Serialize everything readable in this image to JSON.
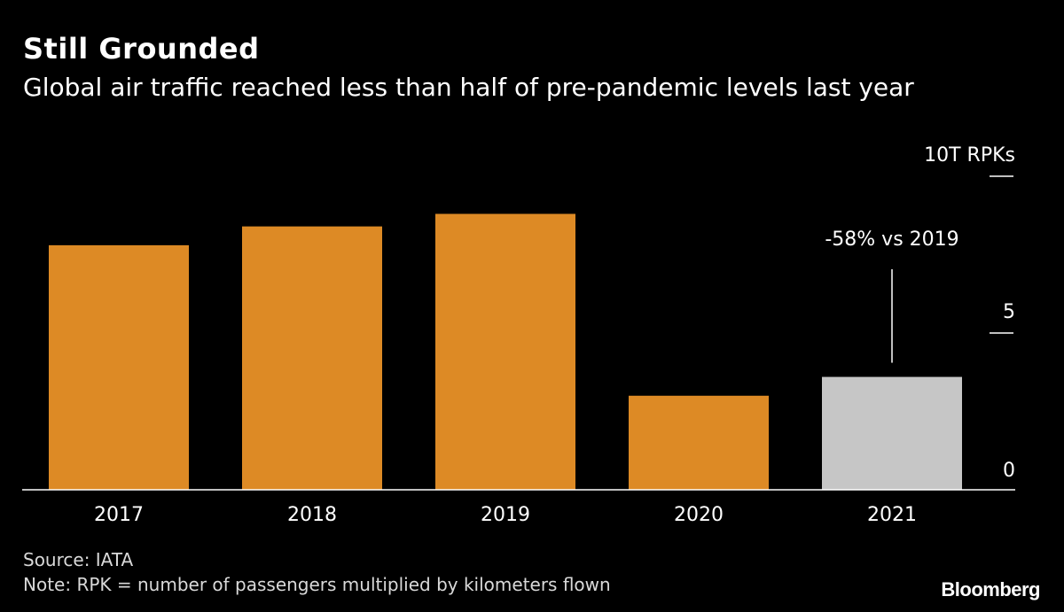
{
  "title": "Still Grounded",
  "subtitle": "Global air traffic reached less than half of pre-pandemic levels last year",
  "colors": {
    "bar": "#dd8a25",
    "highlight": "#c6c6c6",
    "background": "#000000",
    "axis": "#ffffff"
  },
  "chart_data": {
    "type": "bar",
    "unit_label": "10T RPKs",
    "categories": [
      "2017",
      "2018",
      "2019",
      "2020",
      "2021"
    ],
    "values": [
      7.8,
      8.4,
      8.8,
      3.0,
      3.6
    ],
    "highlight_category": "2021",
    "ylim": [
      0,
      10
    ],
    "yticks": [
      0,
      5,
      10
    ],
    "ytick_labels": [
      "0",
      "5",
      "10T RPKs"
    ],
    "annotation": {
      "category": "2021",
      "text": "-58% vs 2019"
    },
    "xlabel": "",
    "ylabel": ""
  },
  "footer": {
    "source": "Source: IATA",
    "note": "Note: RPK = number of passengers multiplied by kilometers flown"
  },
  "brand": "Bloomberg"
}
